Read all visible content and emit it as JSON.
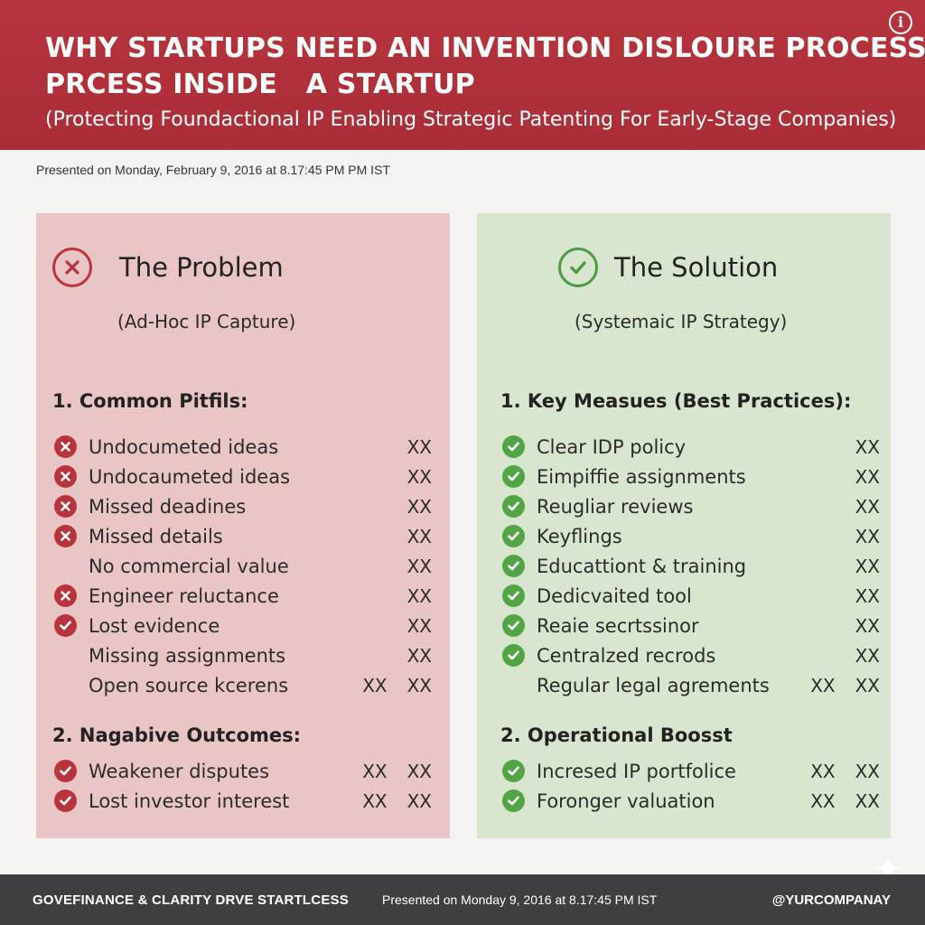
{
  "header": {
    "title_line1": "WHY STARTUPS NEED AN INVENTION DISLOURE PROCESS",
    "title_line2": "PRCESS INSIDE   A STARTUP",
    "subtitle": "(Protecting Foundactional IP Enabling Strategic Patenting For Early-Stage Companies)",
    "info_icon": "info-icon"
  },
  "presented_top": "Presented on Monday, February 9, 2016 at 8.17:45 PM PM IST",
  "problem": {
    "title": "The Problem",
    "subtitle": "(Ad-Hoc IP Capture)",
    "icon": "x-circle-icon",
    "accent": "#b8343d",
    "background": "#eac5c5",
    "section1_title": "1. Common Pitfils:",
    "section1_items": [
      {
        "label": "Undocumeted ideas",
        "icon": "x",
        "marks": [
          "XX"
        ]
      },
      {
        "label": "Undocaumeted ideas",
        "icon": "x",
        "marks": [
          "XX"
        ]
      },
      {
        "label": "Missed deadines",
        "icon": "x",
        "marks": [
          "XX"
        ]
      },
      {
        "label": "Missed details",
        "icon": "x",
        "marks": [
          "XX"
        ]
      },
      {
        "label": "No commercial value",
        "icon": "none",
        "marks": [
          "XX"
        ]
      },
      {
        "label": "Engineer reluctance",
        "icon": "x",
        "marks": [
          "XX"
        ]
      },
      {
        "label": "Lost evidence",
        "icon": "check-red",
        "marks": [
          "XX"
        ]
      },
      {
        "label": "Missing assignments",
        "icon": "none",
        "marks": [
          "XX"
        ]
      },
      {
        "label": "Open source kcerens",
        "icon": "none",
        "marks": [
          "XX",
          "XX"
        ]
      }
    ],
    "section2_title": "2. Nagabive Outcomes:",
    "section2_items": [
      {
        "label": "Weakener disputes",
        "icon": "check-red",
        "marks": [
          "XX",
          "XX"
        ]
      },
      {
        "label": "Lost investor interest",
        "icon": "check-red",
        "marks": [
          "XX",
          "XX"
        ]
      }
    ]
  },
  "solution": {
    "title": "The Solution",
    "subtitle": "(Systemaic IP Strategy)",
    "icon": "check-circle-icon",
    "accent": "#52a447",
    "background": "#d9e6cf",
    "section1_title": "1. Key Measues (Best Practices):",
    "section1_items": [
      {
        "label": "Clear IDP policy",
        "icon": "check-green",
        "marks": [
          "XX"
        ]
      },
      {
        "label": "Eimpiffie assignments",
        "icon": "check-green",
        "marks": [
          "XX"
        ]
      },
      {
        "label": "Reugliar reviews",
        "icon": "check-green",
        "marks": [
          "XX"
        ]
      },
      {
        "label": "Keyflings",
        "icon": "check-green",
        "marks": [
          "XX"
        ]
      },
      {
        "label": "Educattiont & training",
        "icon": "check-green",
        "marks": [
          "XX"
        ]
      },
      {
        "label": "Dedicvaited tool",
        "icon": "check-green",
        "marks": [
          "XX"
        ]
      },
      {
        "label": "Reaie secrtssinor",
        "icon": "check-green",
        "marks": [
          "XX"
        ]
      },
      {
        "label": "Centralzed recrods",
        "icon": "check-green",
        "marks": [
          "XX"
        ]
      },
      {
        "label": "Regular legal agrements",
        "icon": "none",
        "marks": [
          "XX",
          "XX"
        ]
      }
    ],
    "section2_title": "2. Operational Boosst",
    "section2_items": [
      {
        "label": "Incresed IP portfolice",
        "icon": "check-green",
        "marks": [
          "XX",
          "XX"
        ]
      },
      {
        "label": "Foronger valuation",
        "icon": "check-green",
        "marks": [
          "XX",
          "XX"
        ]
      }
    ]
  },
  "footer": {
    "left": "GOVEFINANCE & CLARITY DRVE STARTLCESS",
    "middle": "Presented on Monday 9, 2016 at 8.17:45 PM IST",
    "right": "@YURCOMPANAY",
    "background": "#3f3f41"
  },
  "colors": {
    "header_red": "#b2303a",
    "problem_red": "#b8343d",
    "solution_green": "#52a447"
  }
}
